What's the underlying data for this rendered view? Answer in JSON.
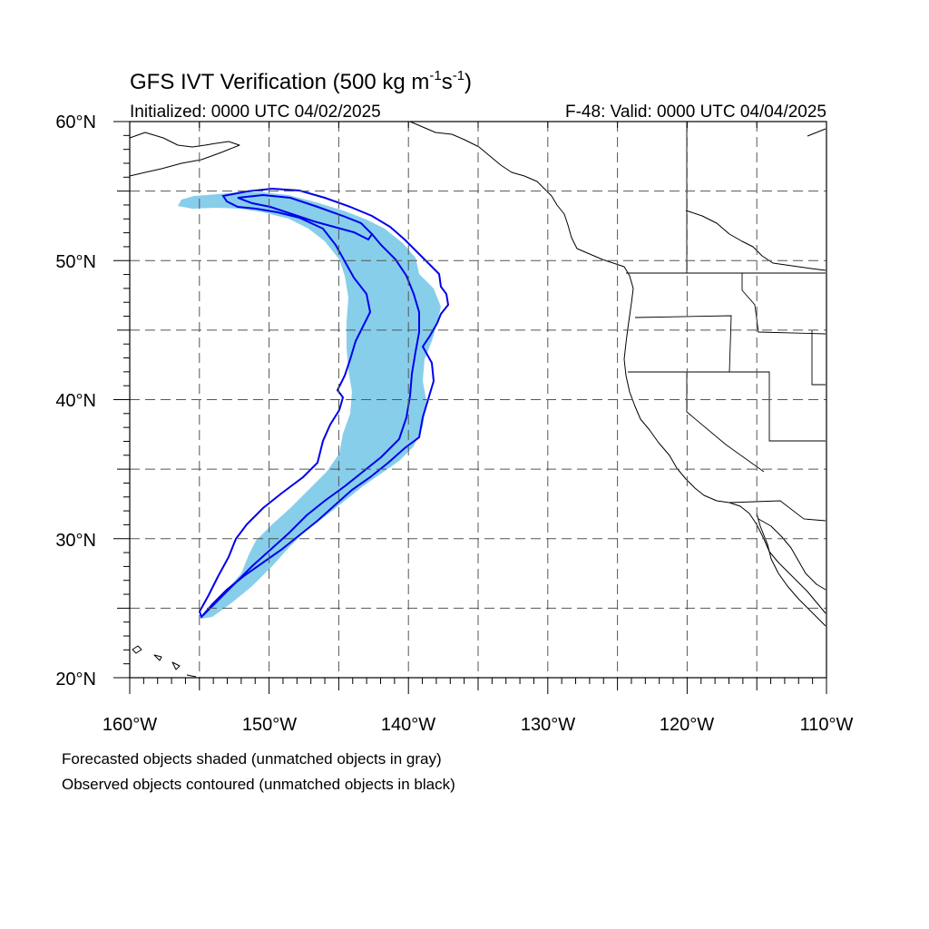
{
  "title": {
    "main": "GFS IVT Verification (500 kg m",
    "sup1": "-1",
    "mid": "s",
    "sup2": "-1",
    "end": ")"
  },
  "subtitle_left": "Initialized: 0000 UTC 04/02/2025",
  "subtitle_right": "F-48: Valid: 0000 UTC 04/04/2025",
  "lat_labels": [
    {
      "value": 60,
      "text": "60°N"
    },
    {
      "value": 50,
      "text": "50°N"
    },
    {
      "value": 40,
      "text": "40°N"
    },
    {
      "value": 30,
      "text": "30°N"
    },
    {
      "value": 20,
      "text": "20°N"
    }
  ],
  "lon_labels": [
    {
      "value": -160,
      "text": "160°W"
    },
    {
      "value": -150,
      "text": "150°W"
    },
    {
      "value": -140,
      "text": "140°W"
    },
    {
      "value": -130,
      "text": "130°W"
    },
    {
      "value": -120,
      "text": "120°W"
    },
    {
      "value": -110,
      "text": "110°W"
    }
  ],
  "extent": {
    "lon_min": -160,
    "lon_max": -110,
    "lat_min": 20,
    "lat_max": 60
  },
  "gridlines": {
    "lon_step": 5,
    "lat_step": 5,
    "style": "dashed"
  },
  "colors": {
    "forecast_fill": "#87ceeb",
    "observed_contour": "#0000ee",
    "coastline": "#000000",
    "grid": "#555555"
  },
  "notes": [
    "Forecasted objects shaded (unmatched objects in gray)",
    "Observed objects contoured (unmatched objects in black)"
  ]
}
